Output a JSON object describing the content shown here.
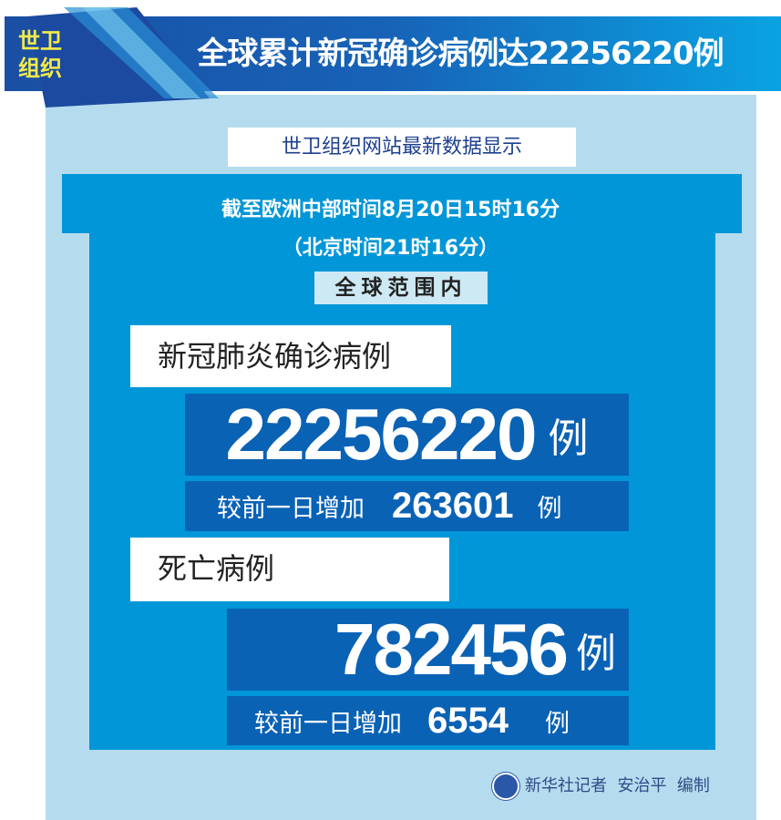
{
  "header": {
    "org_label": "世卫组织",
    "title": "全球累计新冠确诊病例达22256220例"
  },
  "source": "世卫组织网站最新数据显示",
  "time": {
    "cet": "截至欧洲中部时间8月20日15时16分",
    "beijing": "（北京时间21时16分）"
  },
  "scope": "全球范围内",
  "confirmed": {
    "label": "新冠肺炎确诊病例",
    "total": "22256220",
    "unit": "例",
    "increase_label": "较前一日增加",
    "increase": "263601",
    "increase_unit": "例"
  },
  "deaths": {
    "label": "死亡病例",
    "total": "782456",
    "unit": "例",
    "increase_label": "较前一日增加",
    "increase": "6554",
    "increase_unit": "例"
  },
  "credit": {
    "logo_icon": "xinhua-logo-icon",
    "text": "新华社记者  安治平  编制"
  },
  "colors": {
    "header": "#1a4fa3",
    "panel": "#b5dcee",
    "inner_blue": "#0096d8",
    "dark_box": "#0a62b5",
    "org_label": "#f2ea4a"
  }
}
